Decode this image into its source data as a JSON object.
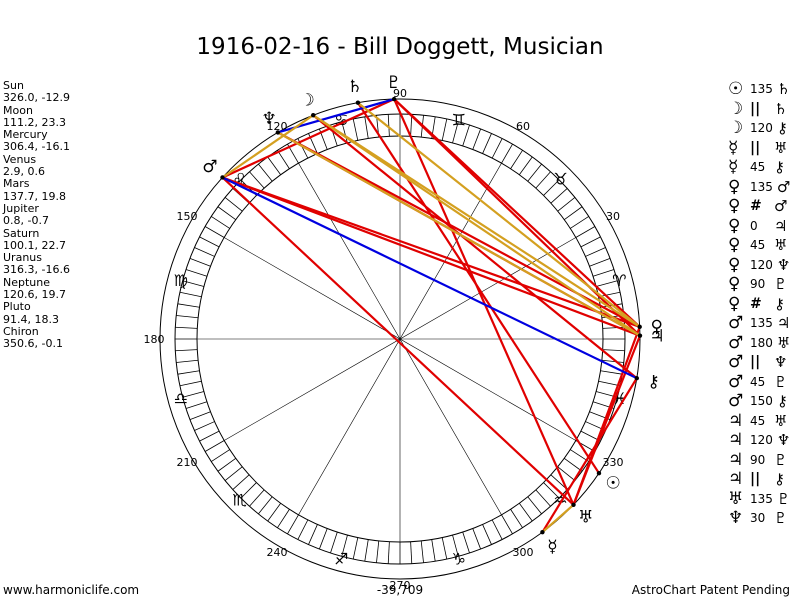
{
  "title": "1916-02-16 - Bill Doggett, Musician",
  "planets": [
    {
      "name": "Sun",
      "pos": "326.0, -12.9"
    },
    {
      "name": "Moon",
      "pos": "111.2, 23.3"
    },
    {
      "name": "Mercury",
      "pos": "306.4, -16.1"
    },
    {
      "name": "Venus",
      "pos": "2.9, 0.6"
    },
    {
      "name": "Mars",
      "pos": "137.7, 19.8"
    },
    {
      "name": "Jupiter",
      "pos": "0.8, -0.7"
    },
    {
      "name": "Saturn",
      "pos": "100.1, 22.7"
    },
    {
      "name": "Uranus",
      "pos": "316.3, -16.6"
    },
    {
      "name": "Neptune",
      "pos": "120.6, 19.7"
    },
    {
      "name": "Pluto",
      "pos": "91.4, 18.3"
    },
    {
      "name": "Chiron",
      "pos": "350.6, -0.1"
    }
  ],
  "aspects": [
    {
      "p1": "☉",
      "asp": "135",
      "p2": "♄"
    },
    {
      "p1": "☽",
      "asp": "||",
      "p2": "♄"
    },
    {
      "p1": "☽",
      "asp": "120",
      "p2": "⚷"
    },
    {
      "p1": "☿",
      "asp": "||",
      "p2": "♅"
    },
    {
      "p1": "☿",
      "asp": "45",
      "p2": "⚷"
    },
    {
      "p1": "♀",
      "asp": "135",
      "p2": "♂"
    },
    {
      "p1": "♀",
      "asp": "#",
      "p2": "♂"
    },
    {
      "p1": "♀",
      "asp": "0",
      "p2": "♃"
    },
    {
      "p1": "♀",
      "asp": "45",
      "p2": "♅"
    },
    {
      "p1": "♀",
      "asp": "120",
      "p2": "♆"
    },
    {
      "p1": "♀",
      "asp": "90",
      "p2": "♇"
    },
    {
      "p1": "♀",
      "asp": "#",
      "p2": "⚷"
    },
    {
      "p1": "♂",
      "asp": "135",
      "p2": "♃"
    },
    {
      "p1": "♂",
      "asp": "180",
      "p2": "♅"
    },
    {
      "p1": "♂",
      "asp": "||",
      "p2": "♆"
    },
    {
      "p1": "♂",
      "asp": "45",
      "p2": "♇"
    },
    {
      "p1": "♂",
      "asp": "150",
      "p2": "⚷"
    },
    {
      "p1": "♃",
      "asp": "45",
      "p2": "♅"
    },
    {
      "p1": "♃",
      "asp": "120",
      "p2": "♆"
    },
    {
      "p1": "♃",
      "asp": "90",
      "p2": "♇"
    },
    {
      "p1": "♃",
      "asp": "||",
      "p2": "⚷"
    },
    {
      "p1": "♅",
      "asp": "135",
      "p2": "♇"
    },
    {
      "p1": "♆",
      "asp": "30",
      "p2": "♇"
    }
  ],
  "footer": {
    "left": "www.harmoniclife.com",
    "center": "-39,709",
    "right": "AstroChart Patent Pending"
  },
  "chart_data": {
    "type": "astrological-wheel",
    "degree_labels": [
      "30",
      "60",
      "90",
      "120",
      "150",
      "180",
      "210",
      "240",
      "270",
      "300",
      "330"
    ],
    "sign_glyphs": [
      "♈",
      "♉",
      "♊",
      "♋",
      "♌",
      "♍",
      "♎",
      "♏",
      "♐",
      "♑",
      "♒",
      "♓"
    ],
    "planet_points": [
      {
        "glyph": "☉",
        "lon": 326.0
      },
      {
        "glyph": "☽",
        "lon": 111.2
      },
      {
        "glyph": "☿",
        "lon": 306.4
      },
      {
        "glyph": "♀",
        "lon": 2.9
      },
      {
        "glyph": "♂",
        "lon": 137.7
      },
      {
        "glyph": "♃",
        "lon": 0.8
      },
      {
        "glyph": "♄",
        "lon": 100.1
      },
      {
        "glyph": "♅",
        "lon": 316.3
      },
      {
        "glyph": "♆",
        "lon": 120.6
      },
      {
        "glyph": "♇",
        "lon": 91.4
      },
      {
        "glyph": "⚷",
        "lon": 350.6
      }
    ],
    "aspect_lines": [
      {
        "a": "Sun",
        "b": "Saturn",
        "color": "#e00000"
      },
      {
        "a": "Moon",
        "b": "Chiron",
        "color": "#e00000"
      },
      {
        "a": "Mercury",
        "b": "Chiron",
        "color": "#e00000"
      },
      {
        "a": "Venus",
        "b": "Mars",
        "color": "#e00000"
      },
      {
        "a": "Venus",
        "b": "Uranus",
        "color": "#e00000"
      },
      {
        "a": "Venus",
        "b": "Neptune",
        "color": "#e00000"
      },
      {
        "a": "Venus",
        "b": "Pluto",
        "color": "#e00000"
      },
      {
        "a": "Mars",
        "b": "Jupiter",
        "color": "#e00000"
      },
      {
        "a": "Mars",
        "b": "Uranus",
        "color": "#e00000"
      },
      {
        "a": "Mars",
        "b": "Pluto",
        "color": "#e00000"
      },
      {
        "a": "Jupiter",
        "b": "Uranus",
        "color": "#e00000"
      },
      {
        "a": "Jupiter",
        "b": "Neptune",
        "color": "#e00000"
      },
      {
        "a": "Jupiter",
        "b": "Pluto",
        "color": "#e00000"
      },
      {
        "a": "Uranus",
        "b": "Pluto",
        "color": "#e00000"
      },
      {
        "a": "Mars",
        "b": "Chiron",
        "color": "#0000e0"
      },
      {
        "a": "Neptune",
        "b": "Pluto",
        "color": "#0000e0"
      },
      {
        "a": "Venus",
        "b": "Moon",
        "color": "#d4a020"
      },
      {
        "a": "Jupiter",
        "b": "Neptune",
        "color": "#d4a020"
      },
      {
        "a": "Jupiter",
        "b": "Moon",
        "color": "#d4a020"
      },
      {
        "a": "Venus",
        "b": "Saturn",
        "color": "#d4a020"
      },
      {
        "a": "Mars",
        "b": "Moon",
        "color": "#d4a020"
      },
      {
        "a": "Mercury",
        "b": "Uranus",
        "color": "#d4a020"
      }
    ]
  }
}
